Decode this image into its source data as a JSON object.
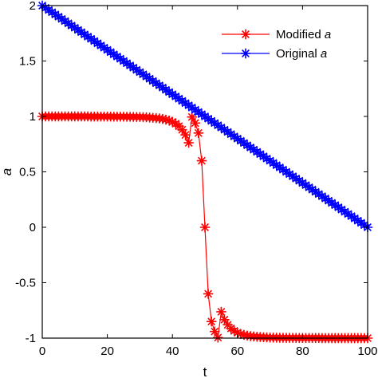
{
  "chart_data": {
    "type": "line",
    "xlabel": "t",
    "ylabel": "a",
    "xlim": [
      0,
      100
    ],
    "ylim": [
      -1,
      2
    ],
    "x_ticks": [
      "0",
      "20",
      "40",
      "60",
      "80",
      "100"
    ],
    "y_ticks": [
      "-1",
      "-0.5",
      "0",
      "0.5",
      "1",
      "1.5",
      "2"
    ],
    "grid": false,
    "legend_position": "top-right",
    "series": [
      {
        "name": "Modified a",
        "legend_prefix": "Modified ",
        "legend_symbol": "a",
        "color": "#ff0000",
        "marker": "asterisk",
        "x": [
          0,
          1,
          2,
          3,
          4,
          5,
          6,
          7,
          8,
          9,
          10,
          11,
          12,
          13,
          14,
          15,
          16,
          17,
          18,
          19,
          20,
          21,
          22,
          23,
          24,
          25,
          26,
          27,
          28,
          29,
          30,
          31,
          32,
          33,
          34,
          35,
          36,
          37,
          38,
          39,
          40,
          41,
          42,
          43,
          44,
          45,
          46,
          47,
          48,
          49,
          50,
          51,
          52,
          53,
          54,
          55,
          56,
          57,
          58,
          59,
          60,
          61,
          62,
          63,
          64,
          65,
          66,
          67,
          68,
          69,
          70,
          71,
          72,
          73,
          74,
          75,
          76,
          77,
          78,
          79,
          80,
          81,
          82,
          83,
          84,
          85,
          86,
          87,
          88,
          89,
          90,
          91,
          92,
          93,
          94,
          95,
          96,
          97,
          98,
          99,
          100
        ],
        "y": [
          1,
          1,
          1,
          1,
          1,
          1,
          1,
          1,
          1,
          1,
          1,
          1,
          1,
          1,
          1,
          0.999,
          0.999,
          0.999,
          0.999,
          0.999,
          0.999,
          0.999,
          0.998,
          0.998,
          0.998,
          0.998,
          0.997,
          0.997,
          0.996,
          0.995,
          0.995,
          0.993,
          0.992,
          0.99,
          0.988,
          0.985,
          0.982,
          0.977,
          0.971,
          0.963,
          0.951,
          0.935,
          0.912,
          0.88,
          0.833,
          0.762,
          0.995,
          0.94,
          0.85,
          0.6,
          0,
          -0.6,
          -0.85,
          -0.94,
          -0.995,
          -0.762,
          -0.833,
          -0.88,
          -0.912,
          -0.935,
          -0.951,
          -0.963,
          -0.971,
          -0.977,
          -0.982,
          -0.985,
          -0.988,
          -0.99,
          -0.992,
          -0.993,
          -0.995,
          -0.995,
          -0.996,
          -0.997,
          -0.997,
          -0.998,
          -0.998,
          -0.998,
          -0.998,
          -0.999,
          -0.999,
          -0.999,
          -0.999,
          -0.999,
          -0.999,
          -0.999,
          -1,
          -1,
          -1,
          -1,
          -1,
          -1,
          -1,
          -1,
          -1,
          -1,
          -1,
          -1,
          -1,
          -1,
          -1
        ]
      },
      {
        "name": "Original a",
        "legend_prefix": "Original ",
        "legend_symbol": "a",
        "color": "#0000ff",
        "marker": "asterisk",
        "x": [
          0,
          1,
          2,
          3,
          4,
          5,
          6,
          7,
          8,
          9,
          10,
          11,
          12,
          13,
          14,
          15,
          16,
          17,
          18,
          19,
          20,
          21,
          22,
          23,
          24,
          25,
          26,
          27,
          28,
          29,
          30,
          31,
          32,
          33,
          34,
          35,
          36,
          37,
          38,
          39,
          40,
          41,
          42,
          43,
          44,
          45,
          46,
          47,
          48,
          49,
          50,
          51,
          52,
          53,
          54,
          55,
          56,
          57,
          58,
          59,
          60,
          61,
          62,
          63,
          64,
          65,
          66,
          67,
          68,
          69,
          70,
          71,
          72,
          73,
          74,
          75,
          76,
          77,
          78,
          79,
          80,
          81,
          82,
          83,
          84,
          85,
          86,
          87,
          88,
          89,
          90,
          91,
          92,
          93,
          94,
          95,
          96,
          97,
          98,
          99,
          100
        ],
        "y": [
          2,
          1.98,
          1.96,
          1.94,
          1.92,
          1.9,
          1.88,
          1.86,
          1.84,
          1.82,
          1.8,
          1.78,
          1.76,
          1.74,
          1.72,
          1.7,
          1.68,
          1.66,
          1.64,
          1.62,
          1.6,
          1.58,
          1.56,
          1.54,
          1.52,
          1.5,
          1.48,
          1.46,
          1.44,
          1.42,
          1.4,
          1.38,
          1.36,
          1.34,
          1.32,
          1.3,
          1.28,
          1.26,
          1.24,
          1.22,
          1.2,
          1.18,
          1.16,
          1.14,
          1.12,
          1.1,
          1.08,
          1.06,
          1.04,
          1.02,
          1,
          0.98,
          0.96,
          0.94,
          0.92,
          0.9,
          0.88,
          0.86,
          0.84,
          0.82,
          0.8,
          0.78,
          0.76,
          0.74,
          0.72,
          0.7,
          0.68,
          0.66,
          0.64,
          0.62,
          0.6,
          0.58,
          0.56,
          0.54,
          0.52,
          0.5,
          0.48,
          0.46,
          0.44,
          0.42,
          0.4,
          0.38,
          0.36,
          0.34,
          0.32,
          0.3,
          0.28,
          0.26,
          0.24,
          0.22,
          0.2,
          0.18,
          0.16,
          0.14,
          0.12,
          0.1,
          0.08,
          0.06,
          0.04,
          0.02,
          0
        ]
      }
    ]
  }
}
